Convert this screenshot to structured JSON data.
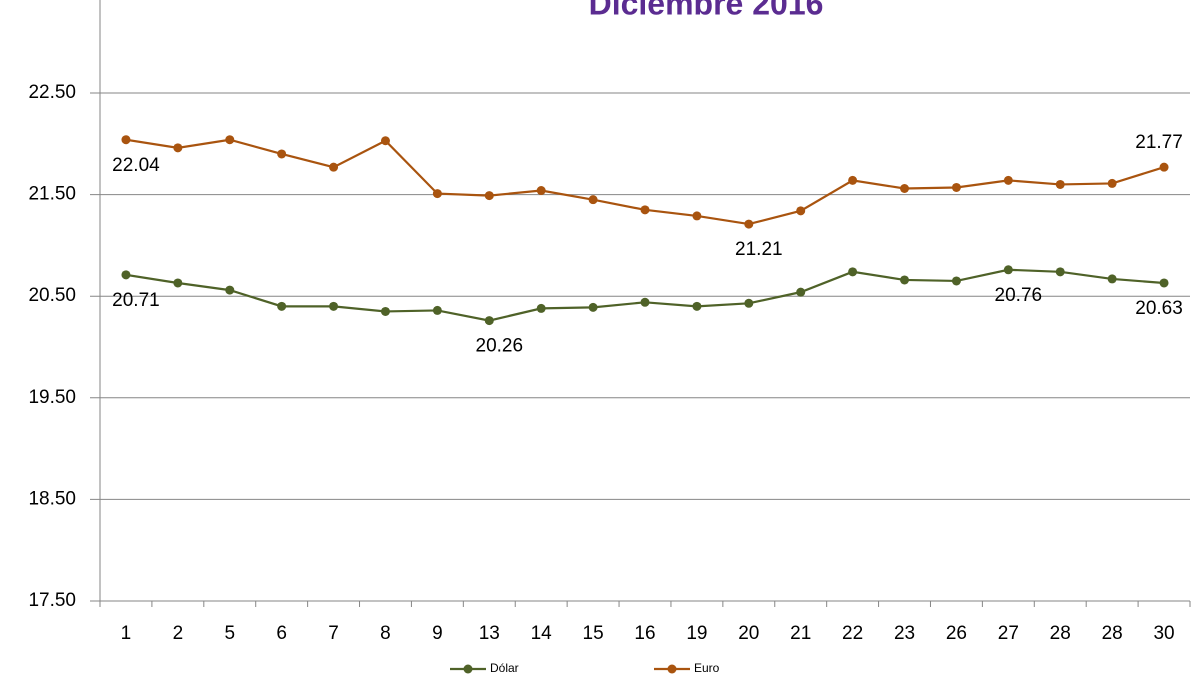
{
  "chart_data": {
    "type": "line",
    "title": "Diciembre 2016",
    "categories": [
      "1",
      "2",
      "5",
      "6",
      "7",
      "8",
      "9",
      "13",
      "14",
      "15",
      "16",
      "19",
      "20",
      "21",
      "22",
      "23",
      "26",
      "27",
      "28",
      "28",
      "30"
    ],
    "series": [
      {
        "name": "Dólar",
        "color": "#4f6228",
        "values": [
          20.71,
          20.63,
          20.56,
          20.4,
          20.4,
          20.35,
          20.36,
          20.26,
          20.38,
          20.39,
          20.44,
          20.4,
          20.43,
          20.54,
          20.74,
          20.66,
          20.65,
          20.76,
          20.74,
          20.67,
          20.63
        ],
        "value_labels": [
          "20.71",
          null,
          null,
          null,
          null,
          null,
          null,
          "20.26",
          null,
          null,
          null,
          null,
          null,
          null,
          null,
          null,
          null,
          "20.76",
          null,
          null,
          "20.63"
        ]
      },
      {
        "name": "Euro",
        "color": "#a9540f",
        "values": [
          22.04,
          21.96,
          22.04,
          21.9,
          21.77,
          22.03,
          21.51,
          21.49,
          21.54,
          21.45,
          21.35,
          21.29,
          21.21,
          21.34,
          21.64,
          21.56,
          21.57,
          21.64,
          21.6,
          21.61,
          21.77
        ],
        "value_labels": [
          "22.04",
          null,
          null,
          null,
          null,
          null,
          null,
          null,
          null,
          null,
          null,
          null,
          "21.21",
          null,
          null,
          null,
          null,
          null,
          null,
          null,
          "21.77"
        ]
      }
    ],
    "ylim": [
      17.5,
      23.5
    ],
    "yticks": [
      {
        "value": 17.5,
        "label": "17.50"
      },
      {
        "value": 18.5,
        "label": "18.50"
      },
      {
        "value": 19.5,
        "label": "19.50"
      },
      {
        "value": 20.5,
        "label": "20.50"
      },
      {
        "value": 21.5,
        "label": "21.50"
      },
      {
        "value": 22.5,
        "label": "22.50"
      }
    ],
    "grid": true,
    "legend": "bottom"
  }
}
